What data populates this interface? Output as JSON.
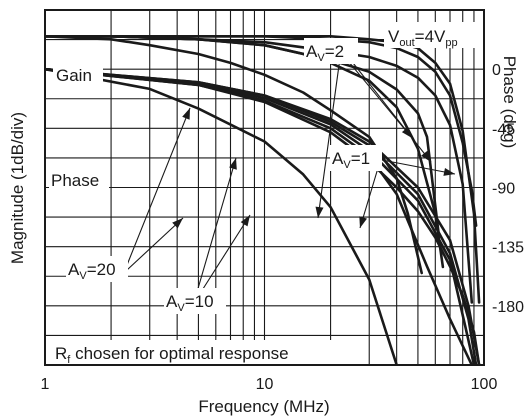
{
  "chart_data": {
    "type": "line",
    "xlabel": "Frequency (MHz)",
    "ylabel_left": "Magnitude (1dB/div)",
    "ylabel_right": "Phase (deg)",
    "x_scale": "log",
    "xlim": [
      1,
      100
    ],
    "x_ticks": [
      {
        "value": 1,
        "label": "1"
      },
      {
        "value": 10,
        "label": "10"
      },
      {
        "value": 100,
        "label": "100"
      }
    ],
    "phase_ylim": [
      -225,
      45
    ],
    "phase_ticks": [
      {
        "value": 0,
        "label": "0"
      },
      {
        "value": -45,
        "label": "-45"
      },
      {
        "value": -90,
        "label": "-90"
      },
      {
        "value": -135,
        "label": "-135"
      },
      {
        "value": -180,
        "label": "-180"
      }
    ],
    "gain_div_per_grid": 1,
    "grid": true,
    "annotations": {
      "vout": {
        "main": "V",
        "sub": "out",
        "rest": "=4V",
        "sub2": "pp"
      },
      "gain_label": "Gain",
      "phase_label": "Phase",
      "av2": {
        "main": "A",
        "sub": "V",
        "rest": "=2"
      },
      "av1": {
        "main": "A",
        "sub": "V",
        "rest": "=1"
      },
      "av20": {
        "main": "A",
        "sub": "V",
        "rest": "=20"
      },
      "av10": {
        "main": "A",
        "sub": "V",
        "rest": "=10"
      },
      "rf_note": {
        "main": "R",
        "sub": "f",
        "rest": " chosen for optimal response"
      }
    },
    "gain_series": [
      {
        "x": [
          1,
          2,
          5,
          10,
          20,
          30,
          40,
          50,
          60,
          70,
          80,
          88,
          92
        ],
        "y": [
          0,
          0,
          0,
          0,
          -0.05,
          -0.1,
          -0.2,
          -0.35,
          -0.6,
          -1.0,
          -1.8,
          -2.6,
          -3.2
        ]
      },
      {
        "x": [
          1,
          2,
          5,
          10,
          20,
          30,
          40,
          50,
          60,
          70,
          80,
          90,
          95
        ],
        "y": [
          0,
          0,
          0,
          0,
          0,
          -0.05,
          -0.1,
          -0.2,
          -0.45,
          -0.8,
          -1.6,
          -3.0,
          -4.5
        ]
      },
      {
        "x": [
          1,
          2,
          5,
          10,
          20,
          30,
          40,
          50,
          60,
          70,
          80,
          88
        ],
        "y": [
          0,
          0,
          -0.05,
          -0.1,
          -0.25,
          -0.35,
          -0.5,
          -0.7,
          -1.0,
          -1.5,
          -2.5,
          -4.5
        ]
      },
      {
        "x": [
          1,
          2,
          5,
          10,
          20,
          30,
          40,
          50,
          55,
          62
        ],
        "y": [
          0,
          0,
          -0.05,
          -0.15,
          -0.4,
          -0.6,
          -0.9,
          -1.3,
          -1.7,
          -3.3
        ]
      },
      {
        "x": [
          1,
          2,
          3,
          5,
          7,
          10,
          15,
          20,
          30,
          40,
          45,
          52
        ],
        "y": [
          0,
          -0.05,
          -0.15,
          -0.3,
          -0.45,
          -0.65,
          -0.95,
          -1.25,
          -1.7,
          -2.4,
          -3.0,
          -4.0
        ]
      },
      {
        "x": [
          1,
          2,
          5,
          10,
          15,
          20,
          30,
          40,
          50,
          60,
          65
        ],
        "y": [
          0,
          0,
          -0.05,
          -0.15,
          -0.3,
          -0.45,
          -0.75,
          -1.2,
          -1.9,
          -3.0,
          -3.9
        ]
      }
    ],
    "phase_series": [
      {
        "x": [
          1,
          5,
          10,
          20,
          30,
          50,
          70,
          85,
          95
        ],
        "y": [
          0,
          -10,
          -20,
          -38,
          -55,
          -90,
          -130,
          -180,
          -225
        ]
      },
      {
        "x": [
          1,
          5,
          10,
          20,
          30,
          50,
          70,
          85,
          92
        ],
        "y": [
          0,
          -10,
          -20,
          -40,
          -58,
          -95,
          -140,
          -190,
          -225
        ]
      },
      {
        "x": [
          1,
          5,
          10,
          20,
          30,
          50,
          70,
          82,
          90
        ],
        "y": [
          0,
          -11,
          -22,
          -42,
          -62,
          -100,
          -145,
          -195,
          -225
        ]
      },
      {
        "x": [
          1,
          5,
          10,
          20,
          30,
          40,
          55,
          70,
          88
        ],
        "y": [
          0,
          -12,
          -24,
          -45,
          -66,
          -95,
          -150,
          -190,
          -225
        ]
      },
      {
        "x": [
          1,
          5,
          10,
          20,
          30,
          40,
          50,
          60,
          70,
          80,
          90,
          95
        ],
        "y": [
          0,
          -12,
          -25,
          -48,
          -70,
          -90,
          -108,
          -128,
          -150,
          -172,
          -200,
          -225
        ]
      },
      {
        "x": [
          1,
          3,
          5,
          10,
          15,
          20,
          30,
          40
        ],
        "y": [
          0,
          -15,
          -30,
          -55,
          -80,
          -105,
          -160,
          -225
        ]
      }
    ]
  }
}
